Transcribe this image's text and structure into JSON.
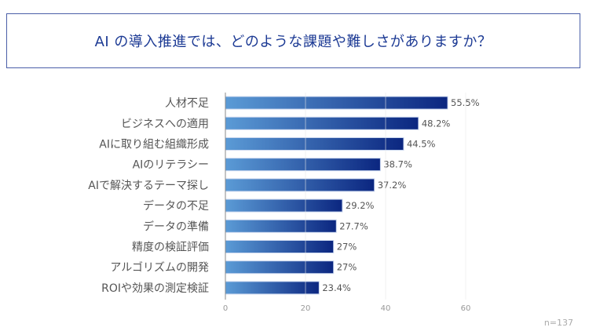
{
  "chart_data": {
    "type": "bar",
    "orientation": "horizontal",
    "title": "AI の導入推進では、どのような課題や難しさがありますか？",
    "categories": [
      "人材不足",
      "ビジネスへの適用",
      "AIに取り組む組織形成",
      "AIのリテラシー",
      "AIで解決するテーマ探し",
      "データの不足",
      "データの準備",
      "精度の検証評価",
      "アルゴリズムの開発",
      "ROIや効果の測定検証"
    ],
    "values": [
      55.5,
      48.2,
      44.5,
      38.7,
      37.2,
      29.2,
      27.7,
      27,
      27,
      23.4
    ],
    "data_labels": [
      "55.5%",
      "48.2%",
      "44.5%",
      "38.7%",
      "37.2%",
      "29.2%",
      "27.7%",
      "27%",
      "27%",
      "23.4%"
    ],
    "xticks": [
      "0",
      "20",
      "40",
      "60"
    ],
    "xlim": [
      0,
      60
    ],
    "xlabel": "",
    "ylabel": "",
    "grid": true,
    "colors": {
      "bar_start": "#5b9bd6",
      "bar_end": "#0b2680",
      "title": "#1c3a94"
    },
    "note": "n=137"
  }
}
